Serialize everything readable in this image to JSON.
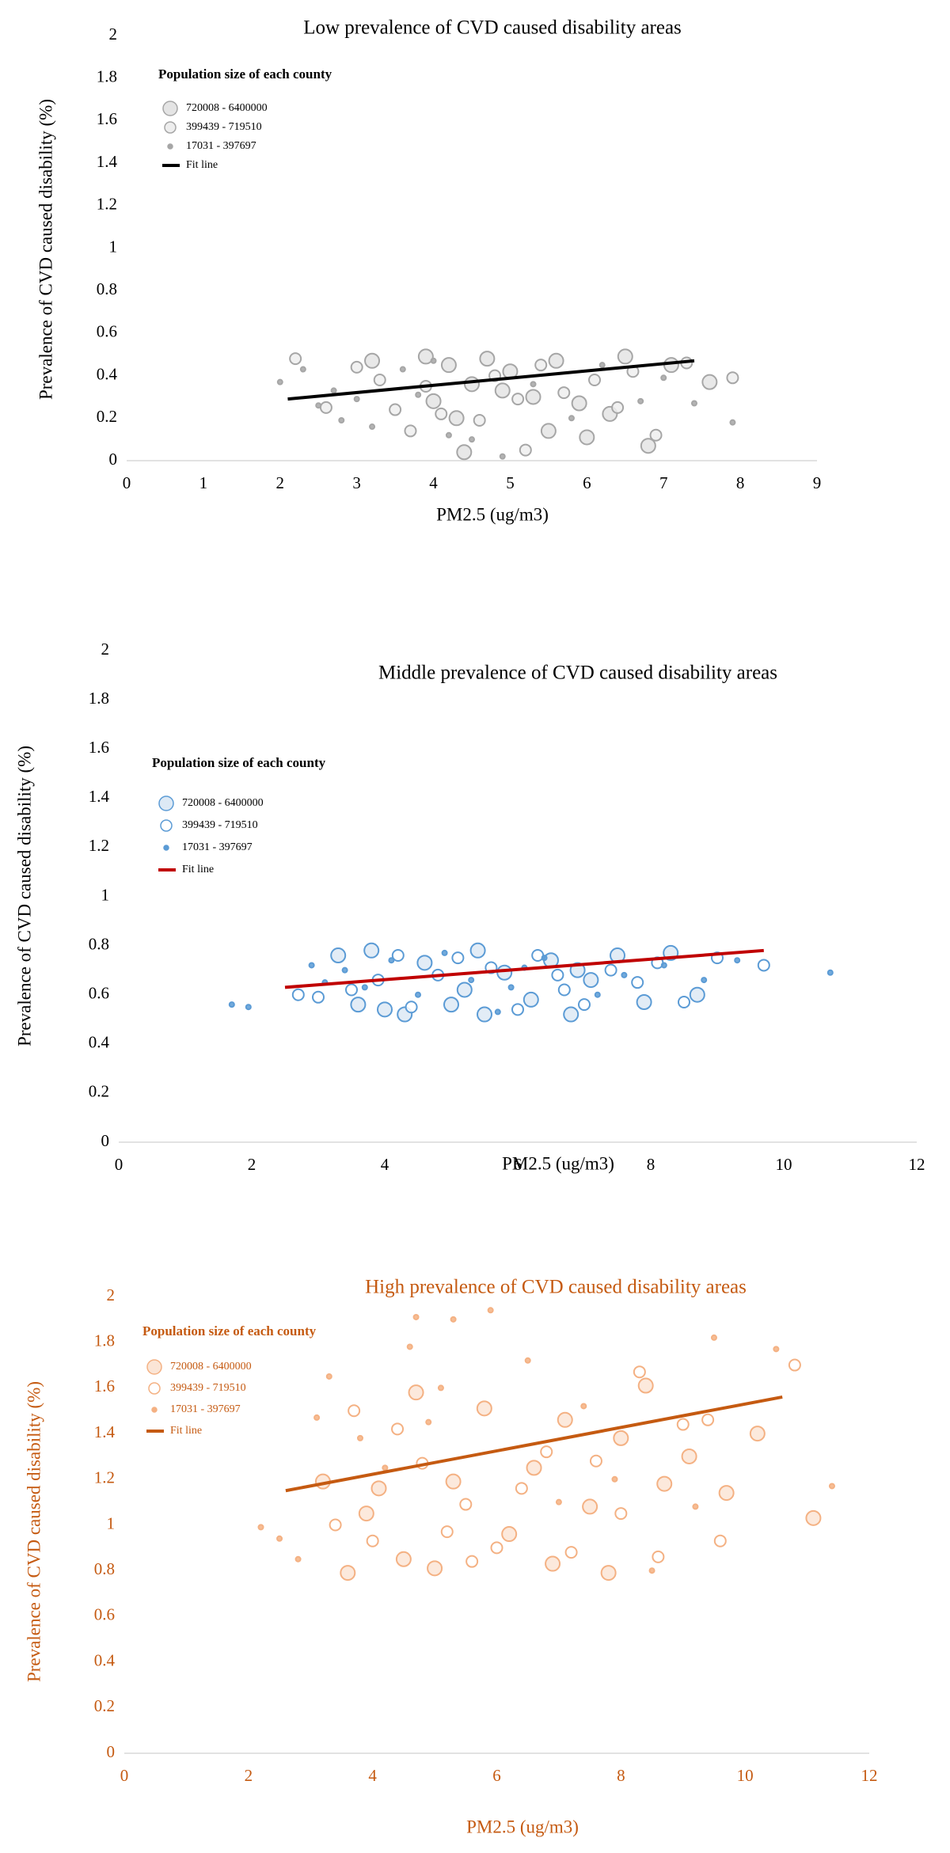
{
  "chart_data": [
    {
      "type": "scatter",
      "title": "Low prevalence of CVD caused disability areas",
      "x_label": "PM2.5 (ug/m3)",
      "y_label": "Prevalence of CVD caused disability (%)",
      "legend_title": "Population size of each county",
      "text_color": "#000000",
      "xlim": [
        0,
        9
      ],
      "ylim": [
        0,
        2
      ],
      "xticks": [
        0,
        1,
        2,
        3,
        4,
        5,
        6,
        7,
        8,
        9
      ],
      "yticks": [
        0,
        0.2,
        0.4,
        0.6,
        0.8,
        1,
        1.2,
        1.4,
        1.6,
        1.8,
        2
      ],
      "series": [
        {
          "name": "720008 - 6400000",
          "color": "#a6a6a6",
          "fill": "#e4e4e4",
          "x": [
            3.2,
            3.9,
            4.0,
            4.2,
            4.4,
            4.5,
            4.7,
            5.0,
            5.3,
            5.5,
            5.6,
            5.9,
            6.0,
            6.3,
            6.5,
            6.8,
            7.1,
            7.6,
            4.3,
            4.9
          ],
          "values": [
            0.47,
            0.49,
            0.28,
            0.45,
            0.04,
            0.36,
            0.48,
            0.42,
            0.3,
            0.14,
            0.47,
            0.27,
            0.11,
            0.22,
            0.49,
            0.07,
            0.45,
            0.37,
            0.2,
            0.33
          ]
        },
        {
          "name": "399439 - 719510",
          "color": "#a6a6a6",
          "fill": "#eeeeee",
          "x": [
            2.2,
            2.6,
            3.3,
            3.5,
            3.7,
            3.9,
            4.1,
            4.6,
            4.8,
            5.1,
            5.4,
            5.7,
            6.1,
            6.4,
            6.6,
            6.9,
            7.3,
            7.9,
            3.0,
            5.2
          ],
          "values": [
            0.48,
            0.25,
            0.38,
            0.24,
            0.14,
            0.35,
            0.22,
            0.19,
            0.4,
            0.29,
            0.45,
            0.32,
            0.38,
            0.25,
            0.42,
            0.12,
            0.46,
            0.39,
            0.44,
            0.05
          ]
        },
        {
          "name": "17031 - 397697",
          "color": "#a6a6a6",
          "fill": "#a6a6a6",
          "x": [
            2.0,
            2.3,
            2.5,
            2.8,
            3.0,
            3.2,
            3.6,
            3.8,
            4.2,
            4.5,
            4.9,
            5.3,
            5.8,
            6.2,
            6.7,
            7.0,
            7.4,
            7.9,
            2.7,
            4.0
          ],
          "values": [
            0.37,
            0.43,
            0.26,
            0.19,
            0.29,
            0.16,
            0.43,
            0.31,
            0.12,
            0.1,
            0.02,
            0.36,
            0.2,
            0.45,
            0.28,
            0.39,
            0.27,
            0.18,
            0.33,
            0.47
          ]
        },
        {
          "name": "Fit line",
          "type": "line",
          "color": "#000000",
          "x": [
            2.1,
            7.4
          ],
          "values": [
            0.29,
            0.47
          ]
        }
      ]
    },
    {
      "type": "scatter",
      "title": "Middle prevalence of CVD caused disability areas",
      "x_label": "PM2.5 (ug/m3)",
      "y_label": "Prevalence of CVD caused disability (%)",
      "legend_title": "Population size of each county",
      "text_color": "#000000",
      "xlim": [
        0,
        12
      ],
      "ylim": [
        0,
        2
      ],
      "xticks": [
        0,
        2,
        4,
        6,
        8,
        10,
        12
      ],
      "yticks": [
        0,
        0.2,
        0.4,
        0.6,
        0.8,
        1,
        1.2,
        1.4,
        1.6,
        1.8,
        2
      ],
      "series": [
        {
          "name": "720008 - 6400000",
          "color": "#5b9bd5",
          "fill": "#dde9f5",
          "x": [
            3.3,
            3.8,
            4.0,
            4.3,
            4.6,
            5.0,
            5.4,
            5.5,
            5.8,
            6.2,
            6.5,
            6.8,
            7.1,
            7.5,
            7.9,
            8.3,
            8.7,
            3.6,
            5.2,
            6.9
          ],
          "values": [
            0.76,
            0.78,
            0.54,
            0.52,
            0.73,
            0.56,
            0.78,
            0.52,
            0.69,
            0.58,
            0.74,
            0.52,
            0.66,
            0.76,
            0.57,
            0.77,
            0.6,
            0.56,
            0.62,
            0.7
          ]
        },
        {
          "name": "399439 - 719510",
          "color": "#5b9bd5",
          "fill": "#ffffff",
          "x": [
            2.7,
            3.0,
            3.5,
            3.9,
            4.4,
            4.8,
            5.1,
            5.6,
            6.0,
            6.3,
            6.7,
            7.0,
            7.4,
            7.8,
            8.1,
            8.5,
            9.0,
            9.7,
            4.2,
            6.6
          ],
          "values": [
            0.6,
            0.59,
            0.62,
            0.66,
            0.55,
            0.68,
            0.75,
            0.71,
            0.54,
            0.76,
            0.62,
            0.56,
            0.7,
            0.65,
            0.73,
            0.57,
            0.75,
            0.72,
            0.76,
            0.68
          ]
        },
        {
          "name": "17031 - 397697",
          "color": "#5b9bd5",
          "fill": "#5b9bd5",
          "x": [
            1.7,
            1.95,
            2.9,
            3.1,
            3.4,
            3.7,
            4.1,
            4.5,
            4.9,
            5.3,
            5.7,
            6.1,
            6.4,
            7.2,
            7.6,
            8.2,
            8.8,
            9.3,
            10.7,
            5.9
          ],
          "values": [
            0.56,
            0.55,
            0.72,
            0.65,
            0.7,
            0.63,
            0.74,
            0.6,
            0.77,
            0.66,
            0.53,
            0.71,
            0.75,
            0.6,
            0.68,
            0.72,
            0.66,
            0.74,
            0.69,
            0.63
          ]
        },
        {
          "name": "Fit line",
          "type": "line",
          "color": "#c00000",
          "x": [
            2.5,
            9.7
          ],
          "values": [
            0.63,
            0.78
          ]
        }
      ]
    },
    {
      "type": "scatter",
      "title": "High prevalence of CVD caused disability areas",
      "x_label": "PM2.5 (ug/m3)",
      "y_label": "Prevalence of CVD caused disability (%)",
      "legend_title": "Population size of each county",
      "text_color": "#c55a11",
      "xlim": [
        0,
        12
      ],
      "ylim": [
        0,
        2
      ],
      "xticks": [
        0,
        2,
        4,
        6,
        8,
        10,
        12
      ],
      "yticks": [
        0,
        0.2,
        0.4,
        0.6,
        0.8,
        1,
        1.2,
        1.4,
        1.6,
        1.8,
        2
      ],
      "series": [
        {
          "name": "720008 - 6400000",
          "color": "#f4b183",
          "fill": "#fbe5d6",
          "x": [
            3.2,
            3.6,
            3.9,
            4.1,
            4.5,
            4.7,
            5.0,
            5.3,
            5.8,
            6.2,
            6.6,
            6.9,
            7.1,
            7.5,
            7.8,
            8.0,
            8.4,
            8.7,
            9.1,
            9.7,
            10.2,
            11.1
          ],
          "values": [
            1.19,
            0.79,
            1.05,
            1.16,
            0.85,
            1.58,
            0.81,
            1.19,
            1.51,
            0.96,
            1.25,
            0.83,
            1.46,
            1.08,
            0.79,
            1.38,
            1.61,
            1.18,
            1.3,
            1.14,
            1.4,
            1.03
          ]
        },
        {
          "name": "399439 - 719510",
          "color": "#f4b183",
          "fill": "#ffffff",
          "x": [
            3.4,
            3.7,
            4.0,
            4.4,
            4.8,
            5.2,
            5.6,
            6.0,
            6.4,
            6.8,
            7.2,
            7.6,
            8.0,
            8.3,
            8.6,
            9.0,
            9.4,
            9.6,
            10.8,
            5.5
          ],
          "values": [
            1.0,
            1.5,
            0.93,
            1.42,
            1.27,
            0.97,
            0.84,
            0.9,
            1.16,
            1.32,
            0.88,
            1.28,
            1.05,
            1.67,
            0.86,
            1.44,
            1.46,
            0.93,
            1.7,
            1.09
          ]
        },
        {
          "name": "17031 - 397697",
          "color": "#f4b183",
          "fill": "#f4b183",
          "x": [
            2.2,
            2.5,
            2.8,
            3.1,
            3.3,
            3.8,
            4.2,
            4.6,
            4.7,
            5.1,
            5.3,
            5.9,
            6.5,
            7.0,
            7.4,
            7.9,
            8.5,
            9.2,
            9.5,
            10.5,
            11.4,
            4.9
          ],
          "values": [
            0.99,
            0.94,
            0.85,
            1.47,
            1.65,
            1.38,
            1.25,
            1.78,
            1.91,
            1.6,
            1.9,
            1.94,
            1.72,
            1.1,
            1.52,
            1.2,
            0.8,
            1.08,
            1.82,
            1.77,
            1.17,
            1.45
          ]
        },
        {
          "name": "Fit line",
          "type": "line",
          "color": "#c55a11",
          "x": [
            2.6,
            10.6
          ],
          "values": [
            1.15,
            1.56
          ]
        }
      ]
    }
  ]
}
